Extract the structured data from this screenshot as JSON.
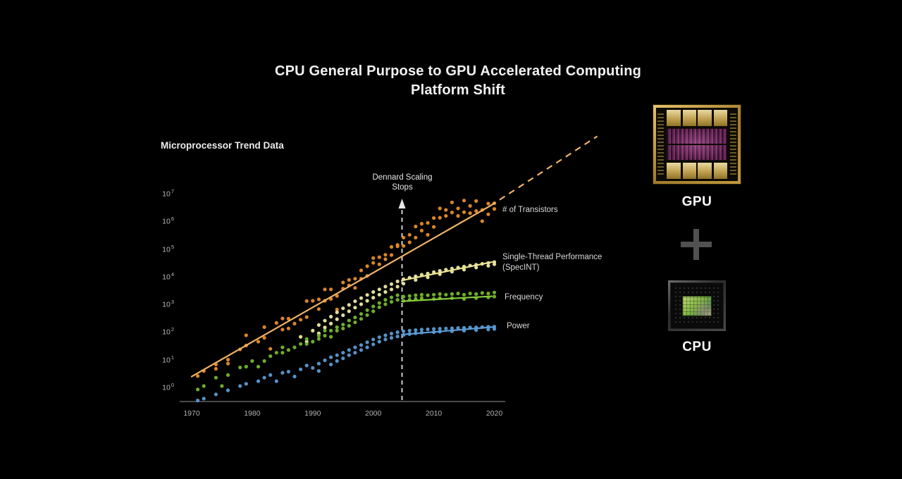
{
  "header": {
    "title_line1": "CPU General Purpose to GPU Accelerated Computing",
    "title_line2": "Platform Shift"
  },
  "right_panel": {
    "gpu_label": "GPU",
    "cpu_label": "CPU",
    "plus_icon": "+"
  },
  "colors": {
    "background": "#000000",
    "transistors": "#E78C28",
    "transistors_line": "#F0B269",
    "specint": "#EDE8A4",
    "specint_line": "#ECE592",
    "frequency": "#74B62C",
    "frequency_line": "#86CC3A",
    "power": "#5B9AD2",
    "power_line": "#5C9CD5",
    "axis_line": "#4A4A4A",
    "dennard_dash": "#CCCCCC"
  },
  "chart_data": {
    "type": "scatter",
    "title": "Microprocessor Trend Data",
    "x_axis": {
      "ticks": [
        1970,
        1980,
        1990,
        2000,
        2010,
        2020
      ],
      "range": [
        1968,
        2021
      ]
    },
    "y_axis": {
      "scale": "log10",
      "tick_exponents": [
        0,
        1,
        2,
        3,
        4,
        5,
        6,
        7
      ],
      "tick_base": "10"
    },
    "annotation": {
      "line1": "Dennard Scaling",
      "line2": "Stops",
      "year": 2004.75
    },
    "legend_position": "right-of-series",
    "grid": false,
    "series": [
      {
        "name": "# of Transistors",
        "label_line1": "# of Transistors",
        "label_line2": "",
        "color": "#E78C28",
        "line_color": "#F0B269",
        "trend_solid": [
          [
            1970,
            2.2
          ],
          [
            2019.3,
            3200000
          ]
        ],
        "trend_dashed": [
          [
            2019.3,
            3200000
          ],
          [
            2037,
            1050000000
          ]
        ],
        "points": [
          [
            1971,
            2.3
          ],
          [
            1972,
            3.5
          ],
          [
            1974,
            4.2
          ],
          [
            1974,
            6
          ],
          [
            1976,
            6.5
          ],
          [
            1976,
            9
          ],
          [
            1978,
            21
          ],
          [
            1979,
            29
          ],
          [
            1979,
            68
          ],
          [
            1981,
            40
          ],
          [
            1982,
            55
          ],
          [
            1982,
            134
          ],
          [
            1983,
            22
          ],
          [
            1984,
            190
          ],
          [
            1985,
            275
          ],
          [
            1985,
            110
          ],
          [
            1986,
            120
          ],
          [
            1986,
            270
          ],
          [
            1987,
            180
          ],
          [
            1988,
            250
          ],
          [
            1989,
            1180
          ],
          [
            1989,
            310
          ],
          [
            1990,
            1200
          ],
          [
            1991,
            600
          ],
          [
            1991,
            1350
          ],
          [
            1992,
            1200
          ],
          [
            1992,
            3100
          ],
          [
            1993,
            3100
          ],
          [
            1993,
            1400
          ],
          [
            1994,
            1800
          ],
          [
            1994,
            580
          ],
          [
            1995,
            5500
          ],
          [
            1995,
            3300
          ],
          [
            1996,
            4300
          ],
          [
            1996,
            6800
          ],
          [
            1997,
            7500
          ],
          [
            1997,
            3500
          ],
          [
            1998,
            7500
          ],
          [
            1998,
            15000
          ],
          [
            1999,
            9500
          ],
          [
            1999,
            21300
          ],
          [
            2000,
            42000
          ],
          [
            2000,
            28000
          ],
          [
            2001,
            45000
          ],
          [
            2001,
            25000
          ],
          [
            2002,
            38000
          ],
          [
            2002,
            55000
          ],
          [
            2003,
            54000
          ],
          [
            2003,
            106000
          ],
          [
            2004,
            112000
          ],
          [
            2004,
            125000
          ],
          [
            2005,
            115000
          ],
          [
            2005,
            230000
          ],
          [
            2006,
            291000
          ],
          [
            2006,
            155000
          ],
          [
            2007,
            230000
          ],
          [
            2007,
            580000
          ],
          [
            2008,
            410000
          ],
          [
            2008,
            730000
          ],
          [
            2009,
            780000
          ],
          [
            2009,
            290000
          ],
          [
            2010,
            1170000
          ],
          [
            2010,
            560000
          ],
          [
            2011,
            1200000
          ],
          [
            2011,
            2600000
          ],
          [
            2012,
            1400000
          ],
          [
            2012,
            2300000
          ],
          [
            2013,
            1860000
          ],
          [
            2013,
            4300000
          ],
          [
            2014,
            2600000
          ],
          [
            2014,
            1400000
          ],
          [
            2015,
            1900000
          ],
          [
            2015,
            5000000
          ],
          [
            2016,
            3200000
          ],
          [
            2016,
            1750000
          ],
          [
            2017,
            2100000
          ],
          [
            2017,
            4800000
          ],
          [
            2018,
            2300000
          ],
          [
            2018,
            900000
          ],
          [
            2019,
            3900000
          ],
          [
            2019,
            1600000
          ],
          [
            2020,
            4000000
          ],
          [
            2020,
            2500000
          ]
        ]
      },
      {
        "name": "Single-Thread Performance (SpecINT)",
        "label_line1": "Single-Thread Performance",
        "label_line2": "(SpecINT)",
        "color": "#EDE8A4",
        "line_color": "#ECE592",
        "trend_solid": [
          [
            2004.7,
            6500
          ],
          [
            2019.6,
            30000
          ]
        ],
        "trend_dashed": null,
        "points": [
          [
            1988,
            60
          ],
          [
            1989,
            40
          ],
          [
            1990,
            100
          ],
          [
            1991,
            160
          ],
          [
            1991,
            80
          ],
          [
            1992,
            230
          ],
          [
            1992,
            130
          ],
          [
            1993,
            320
          ],
          [
            1993,
            180
          ],
          [
            1994,
            460
          ],
          [
            1994,
            260
          ],
          [
            1995,
            640
          ],
          [
            1995,
            360
          ],
          [
            1996,
            850
          ],
          [
            1996,
            500
          ],
          [
            1997,
            1150
          ],
          [
            1997,
            680
          ],
          [
            1998,
            1500
          ],
          [
            1998,
            900
          ],
          [
            1999,
            1950
          ],
          [
            1999,
            1200
          ],
          [
            2000,
            2500
          ],
          [
            2000,
            1550
          ],
          [
            2001,
            3100
          ],
          [
            2001,
            2000
          ],
          [
            2002,
            3900
          ],
          [
            2002,
            2500
          ],
          [
            2003,
            4800
          ],
          [
            2003,
            3100
          ],
          [
            2004,
            6000
          ],
          [
            2004,
            3900
          ],
          [
            2005,
            7200
          ],
          [
            2005,
            5000
          ],
          [
            2006,
            8200
          ],
          [
            2007,
            9200
          ],
          [
            2007,
            6800
          ],
          [
            2008,
            10500
          ],
          [
            2009,
            11500
          ],
          [
            2009,
            8500
          ],
          [
            2010,
            13000
          ],
          [
            2011,
            14500
          ],
          [
            2011,
            11000
          ],
          [
            2012,
            16000
          ],
          [
            2013,
            17500
          ],
          [
            2013,
            13500
          ],
          [
            2014,
            19000
          ],
          [
            2015,
            20500
          ],
          [
            2015,
            16000
          ],
          [
            2016,
            22500
          ],
          [
            2017,
            24000
          ],
          [
            2017,
            19000
          ],
          [
            2018,
            26000
          ],
          [
            2019,
            28000
          ],
          [
            2019,
            22000
          ],
          [
            2020,
            30000
          ],
          [
            2020,
            25000
          ]
        ]
      },
      {
        "name": "Frequency",
        "label_line1": "Frequency",
        "label_line2": "",
        "color": "#74B62C",
        "line_color": "#86CC3A",
        "trend_solid": [
          [
            2004.7,
            1150
          ],
          [
            2019.6,
            1750
          ]
        ],
        "trend_dashed": null,
        "points": [
          [
            1971,
            0.75
          ],
          [
            1972,
            1.0
          ],
          [
            1974,
            2.0
          ],
          [
            1975,
            1.0
          ],
          [
            1976,
            2.5
          ],
          [
            1978,
            4.7
          ],
          [
            1979,
            5
          ],
          [
            1980,
            8
          ],
          [
            1981,
            5
          ],
          [
            1982,
            8
          ],
          [
            1983,
            12
          ],
          [
            1984,
            16
          ],
          [
            1985,
            16
          ],
          [
            1985,
            25
          ],
          [
            1986,
            20
          ],
          [
            1987,
            25
          ],
          [
            1988,
            33
          ],
          [
            1989,
            33
          ],
          [
            1989,
            50
          ],
          [
            1990,
            40
          ],
          [
            1991,
            50
          ],
          [
            1991,
            66
          ],
          [
            1992,
            66
          ],
          [
            1992,
            100
          ],
          [
            1993,
            100
          ],
          [
            1993,
            60
          ],
          [
            1994,
            133
          ],
          [
            1994,
            100
          ],
          [
            1995,
            166
          ],
          [
            1995,
            120
          ],
          [
            1996,
            233
          ],
          [
            1996,
            150
          ],
          [
            1997,
            300
          ],
          [
            1997,
            200
          ],
          [
            1998,
            400
          ],
          [
            1998,
            266
          ],
          [
            1999,
            550
          ],
          [
            1999,
            366
          ],
          [
            2000,
            750
          ],
          [
            2000,
            500
          ],
          [
            2001,
            1000
          ],
          [
            2001,
            700
          ],
          [
            2002,
            1300
          ],
          [
            2002,
            900
          ],
          [
            2003,
            1600
          ],
          [
            2003,
            1100
          ],
          [
            2004,
            1900
          ],
          [
            2004,
            1300
          ],
          [
            2005,
            1700
          ],
          [
            2005,
            1200
          ],
          [
            2006,
            1800
          ],
          [
            2006,
            1300
          ],
          [
            2007,
            1900
          ],
          [
            2007,
            1400
          ],
          [
            2008,
            2000
          ],
          [
            2008,
            1500
          ],
          [
            2009,
            1900
          ],
          [
            2010,
            2000
          ],
          [
            2010,
            1400
          ],
          [
            2011,
            2100
          ],
          [
            2011,
            1500
          ],
          [
            2012,
            2000
          ],
          [
            2013,
            2100
          ],
          [
            2013,
            1500
          ],
          [
            2014,
            2200
          ],
          [
            2015,
            2000
          ],
          [
            2015,
            1400
          ],
          [
            2016,
            2200
          ],
          [
            2017,
            2100
          ],
          [
            2017,
            1500
          ],
          [
            2018,
            2300
          ],
          [
            2019,
            2200
          ],
          [
            2019,
            1600
          ],
          [
            2020,
            2400
          ],
          [
            2020,
            1700
          ]
        ]
      },
      {
        "name": "Power",
        "label_line1": "Power",
        "label_line2": "",
        "color": "#5B9AD2",
        "line_color": "#5C9CD5",
        "trend_solid": [
          [
            2004.7,
            72
          ],
          [
            2019.8,
            135
          ]
        ],
        "trend_dashed": null,
        "points": [
          [
            1971,
            0.3
          ],
          [
            1972,
            0.35
          ],
          [
            1974,
            0.5
          ],
          [
            1976,
            0.7
          ],
          [
            1978,
            1.0
          ],
          [
            1979,
            1.2
          ],
          [
            1981,
            1.5
          ],
          [
            1982,
            2.0
          ],
          [
            1983,
            2.5
          ],
          [
            1984,
            1.5
          ],
          [
            1985,
            3.0
          ],
          [
            1986,
            3.3
          ],
          [
            1987,
            2.2
          ],
          [
            1988,
            4.0
          ],
          [
            1989,
            5.5
          ],
          [
            1990,
            4.5
          ],
          [
            1991,
            6.5
          ],
          [
            1991,
            3.5
          ],
          [
            1992,
            8.5
          ],
          [
            1993,
            11
          ],
          [
            1993,
            6
          ],
          [
            1994,
            13
          ],
          [
            1994,
            8
          ],
          [
            1995,
            16
          ],
          [
            1995,
            10
          ],
          [
            1996,
            20
          ],
          [
            1996,
            13
          ],
          [
            1997,
            25
          ],
          [
            1997,
            16
          ],
          [
            1998,
            30
          ],
          [
            1998,
            20
          ],
          [
            1999,
            38
          ],
          [
            1999,
            25
          ],
          [
            2000,
            48
          ],
          [
            2000,
            32
          ],
          [
            2001,
            58
          ],
          [
            2001,
            40
          ],
          [
            2002,
            68
          ],
          [
            2002,
            48
          ],
          [
            2003,
            78
          ],
          [
            2003,
            55
          ],
          [
            2004,
            88
          ],
          [
            2004,
            62
          ],
          [
            2005,
            95
          ],
          [
            2005,
            70
          ],
          [
            2006,
            100
          ],
          [
            2006,
            75
          ],
          [
            2007,
            105
          ],
          [
            2007,
            80
          ],
          [
            2008,
            110
          ],
          [
            2008,
            85
          ],
          [
            2009,
            112
          ],
          [
            2010,
            115
          ],
          [
            2010,
            88
          ],
          [
            2011,
            118
          ],
          [
            2011,
            92
          ],
          [
            2012,
            120
          ],
          [
            2013,
            122
          ],
          [
            2013,
            95
          ],
          [
            2014,
            125
          ],
          [
            2015,
            127
          ],
          [
            2015,
            100
          ],
          [
            2016,
            130
          ],
          [
            2017,
            132
          ],
          [
            2017,
            105
          ],
          [
            2018,
            135
          ],
          [
            2019,
            138
          ],
          [
            2019,
            110
          ],
          [
            2020,
            140
          ],
          [
            2020,
            115
          ]
        ]
      }
    ]
  }
}
